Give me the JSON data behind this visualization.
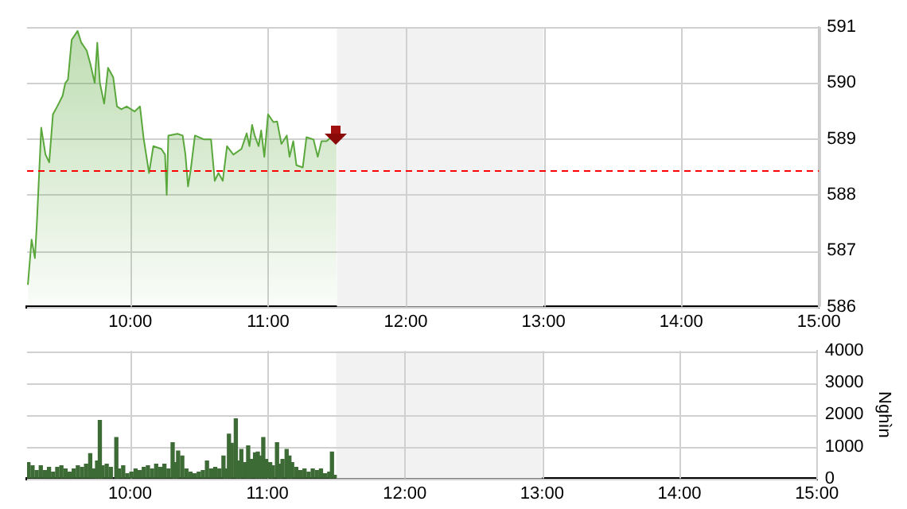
{
  "chart_data": [
    {
      "type": "area",
      "x": [
        9.256,
        9.283,
        9.307,
        9.322,
        9.353,
        9.384,
        9.411,
        9.438,
        9.469,
        9.508,
        9.528,
        9.547,
        9.574,
        9.617,
        9.644,
        9.683,
        9.71,
        9.741,
        9.76,
        9.779,
        9.81,
        9.838,
        9.876,
        9.903,
        9.935,
        9.973,
        10.031,
        10.07,
        10.097,
        10.136,
        10.167,
        10.225,
        10.252,
        10.264,
        10.276,
        10.342,
        10.38,
        10.4,
        10.419,
        10.438,
        10.469,
        10.535,
        10.586,
        10.613,
        10.64,
        10.671,
        10.702,
        10.748,
        10.807,
        10.845,
        10.865,
        10.884,
        10.903,
        10.931,
        10.95,
        10.973,
        11.0,
        11.039,
        11.066,
        11.097,
        11.136,
        11.156,
        11.183,
        11.206,
        11.252,
        11.279,
        11.33,
        11.361,
        11.388,
        11.425,
        11.458,
        11.497
      ],
      "series": [
        {
          "color": "#5aa83c",
          "values": [
            586.39,
            587.2,
            586.87,
            587.53,
            589.2,
            588.72,
            588.58,
            589.44,
            589.58,
            589.77,
            590.0,
            590.06,
            590.77,
            590.93,
            590.72,
            590.58,
            590.34,
            590.0,
            590.72,
            590.0,
            589.63,
            590.27,
            590.1,
            589.58,
            589.53,
            589.58,
            589.49,
            589.58,
            589.0,
            588.39,
            588.87,
            588.82,
            588.72,
            588.0,
            589.06,
            589.09,
            589.06,
            588.72,
            588.15,
            588.44,
            589.06,
            588.99,
            588.99,
            588.25,
            588.39,
            588.25,
            588.87,
            588.72,
            588.82,
            589.1,
            588.87,
            589.25,
            589.06,
            588.87,
            589.15,
            588.68,
            589.44,
            589.3,
            589.31,
            588.91,
            589.06,
            588.68,
            588.96,
            588.53,
            588.49,
            589.03,
            588.99,
            588.68,
            588.96,
            588.96,
            589.03,
            589.01
          ]
        }
      ],
      "xlim": [
        9.25,
        15
      ],
      "xticks": [
        {
          "value": 10,
          "label": "10:00"
        },
        {
          "value": 11,
          "label": "11:00"
        },
        {
          "value": 12,
          "label": "12:00"
        },
        {
          "value": 13,
          "label": "13:00"
        },
        {
          "value": 14,
          "label": "14:00"
        },
        {
          "value": 15,
          "label": "15:00"
        }
      ],
      "ylim": [
        586,
        591
      ],
      "yticks": [
        586,
        587,
        588,
        589,
        590,
        591
      ],
      "grid": true,
      "bands": [
        {
          "axis": "x",
          "from": 11.5,
          "to": 13,
          "color": "#f2f2f2"
        }
      ],
      "ref_lines": [
        {
          "axis": "y",
          "value": 588.45,
          "color": "#ff0000",
          "line_style": "dashed"
        }
      ]
    },
    {
      "type": "bar",
      "ylabel": "Nghìn",
      "x": [
        9.26,
        9.29,
        9.32,
        9.35,
        9.38,
        9.41,
        9.44,
        9.47,
        9.5,
        9.53,
        9.56,
        9.59,
        9.62,
        9.65,
        9.68,
        9.71,
        9.74,
        9.76,
        9.78,
        9.8,
        9.83,
        9.86,
        9.9,
        9.92,
        9.95,
        9.98,
        10.01,
        10.04,
        10.07,
        10.1,
        10.13,
        10.16,
        10.19,
        10.22,
        10.25,
        10.28,
        10.31,
        10.33,
        10.35,
        10.38,
        10.41,
        10.44,
        10.47,
        10.5,
        10.53,
        10.56,
        10.59,
        10.62,
        10.65,
        10.68,
        10.7,
        10.72,
        10.74,
        10.77,
        10.79,
        10.81,
        10.84,
        10.86,
        10.88,
        10.91,
        10.93,
        10.95,
        10.97,
        10.99,
        11.02,
        11.04,
        11.07,
        11.09,
        11.11,
        11.14,
        11.16,
        11.18,
        11.21,
        11.24,
        11.27,
        11.3,
        11.33,
        11.36,
        11.39,
        11.42,
        11.45,
        11.47,
        11.49
      ],
      "values": [
        500,
        400,
        250,
        400,
        250,
        350,
        200,
        350,
        400,
        300,
        200,
        300,
        400,
        350,
        450,
        780,
        300,
        550,
        1820,
        400,
        450,
        350,
        1280,
        300,
        400,
        150,
        200,
        300,
        250,
        350,
        400,
        300,
        450,
        350,
        450,
        300,
        1120,
        500,
        860,
        700,
        300,
        200,
        150,
        200,
        250,
        550,
        300,
        350,
        300,
        700,
        300,
        1390,
        1100,
        1870,
        550,
        910,
        500,
        1020,
        600,
        800,
        830,
        700,
        1280,
        600,
        500,
        400,
        1120,
        450,
        600,
        910,
        700,
        500,
        350,
        250,
        300,
        200,
        300,
        250,
        300,
        150,
        200,
        830,
        100
      ],
      "color": "#3d6b35",
      "xlim": [
        9.25,
        15
      ],
      "xticks": [
        {
          "value": 10,
          "label": "10:00"
        },
        {
          "value": 11,
          "label": "11:00"
        },
        {
          "value": 12,
          "label": "12:00"
        },
        {
          "value": 13,
          "label": "13:00"
        },
        {
          "value": 14,
          "label": "14:00"
        },
        {
          "value": 15,
          "label": "15:00"
        }
      ],
      "ylim": [
        0,
        4000
      ],
      "yticks": [
        0,
        1000,
        2000,
        3000,
        4000
      ],
      "grid": true,
      "bands": [
        {
          "axis": "x",
          "from": 11.5,
          "to": 13,
          "color": "#f2f2f2"
        }
      ]
    }
  ]
}
